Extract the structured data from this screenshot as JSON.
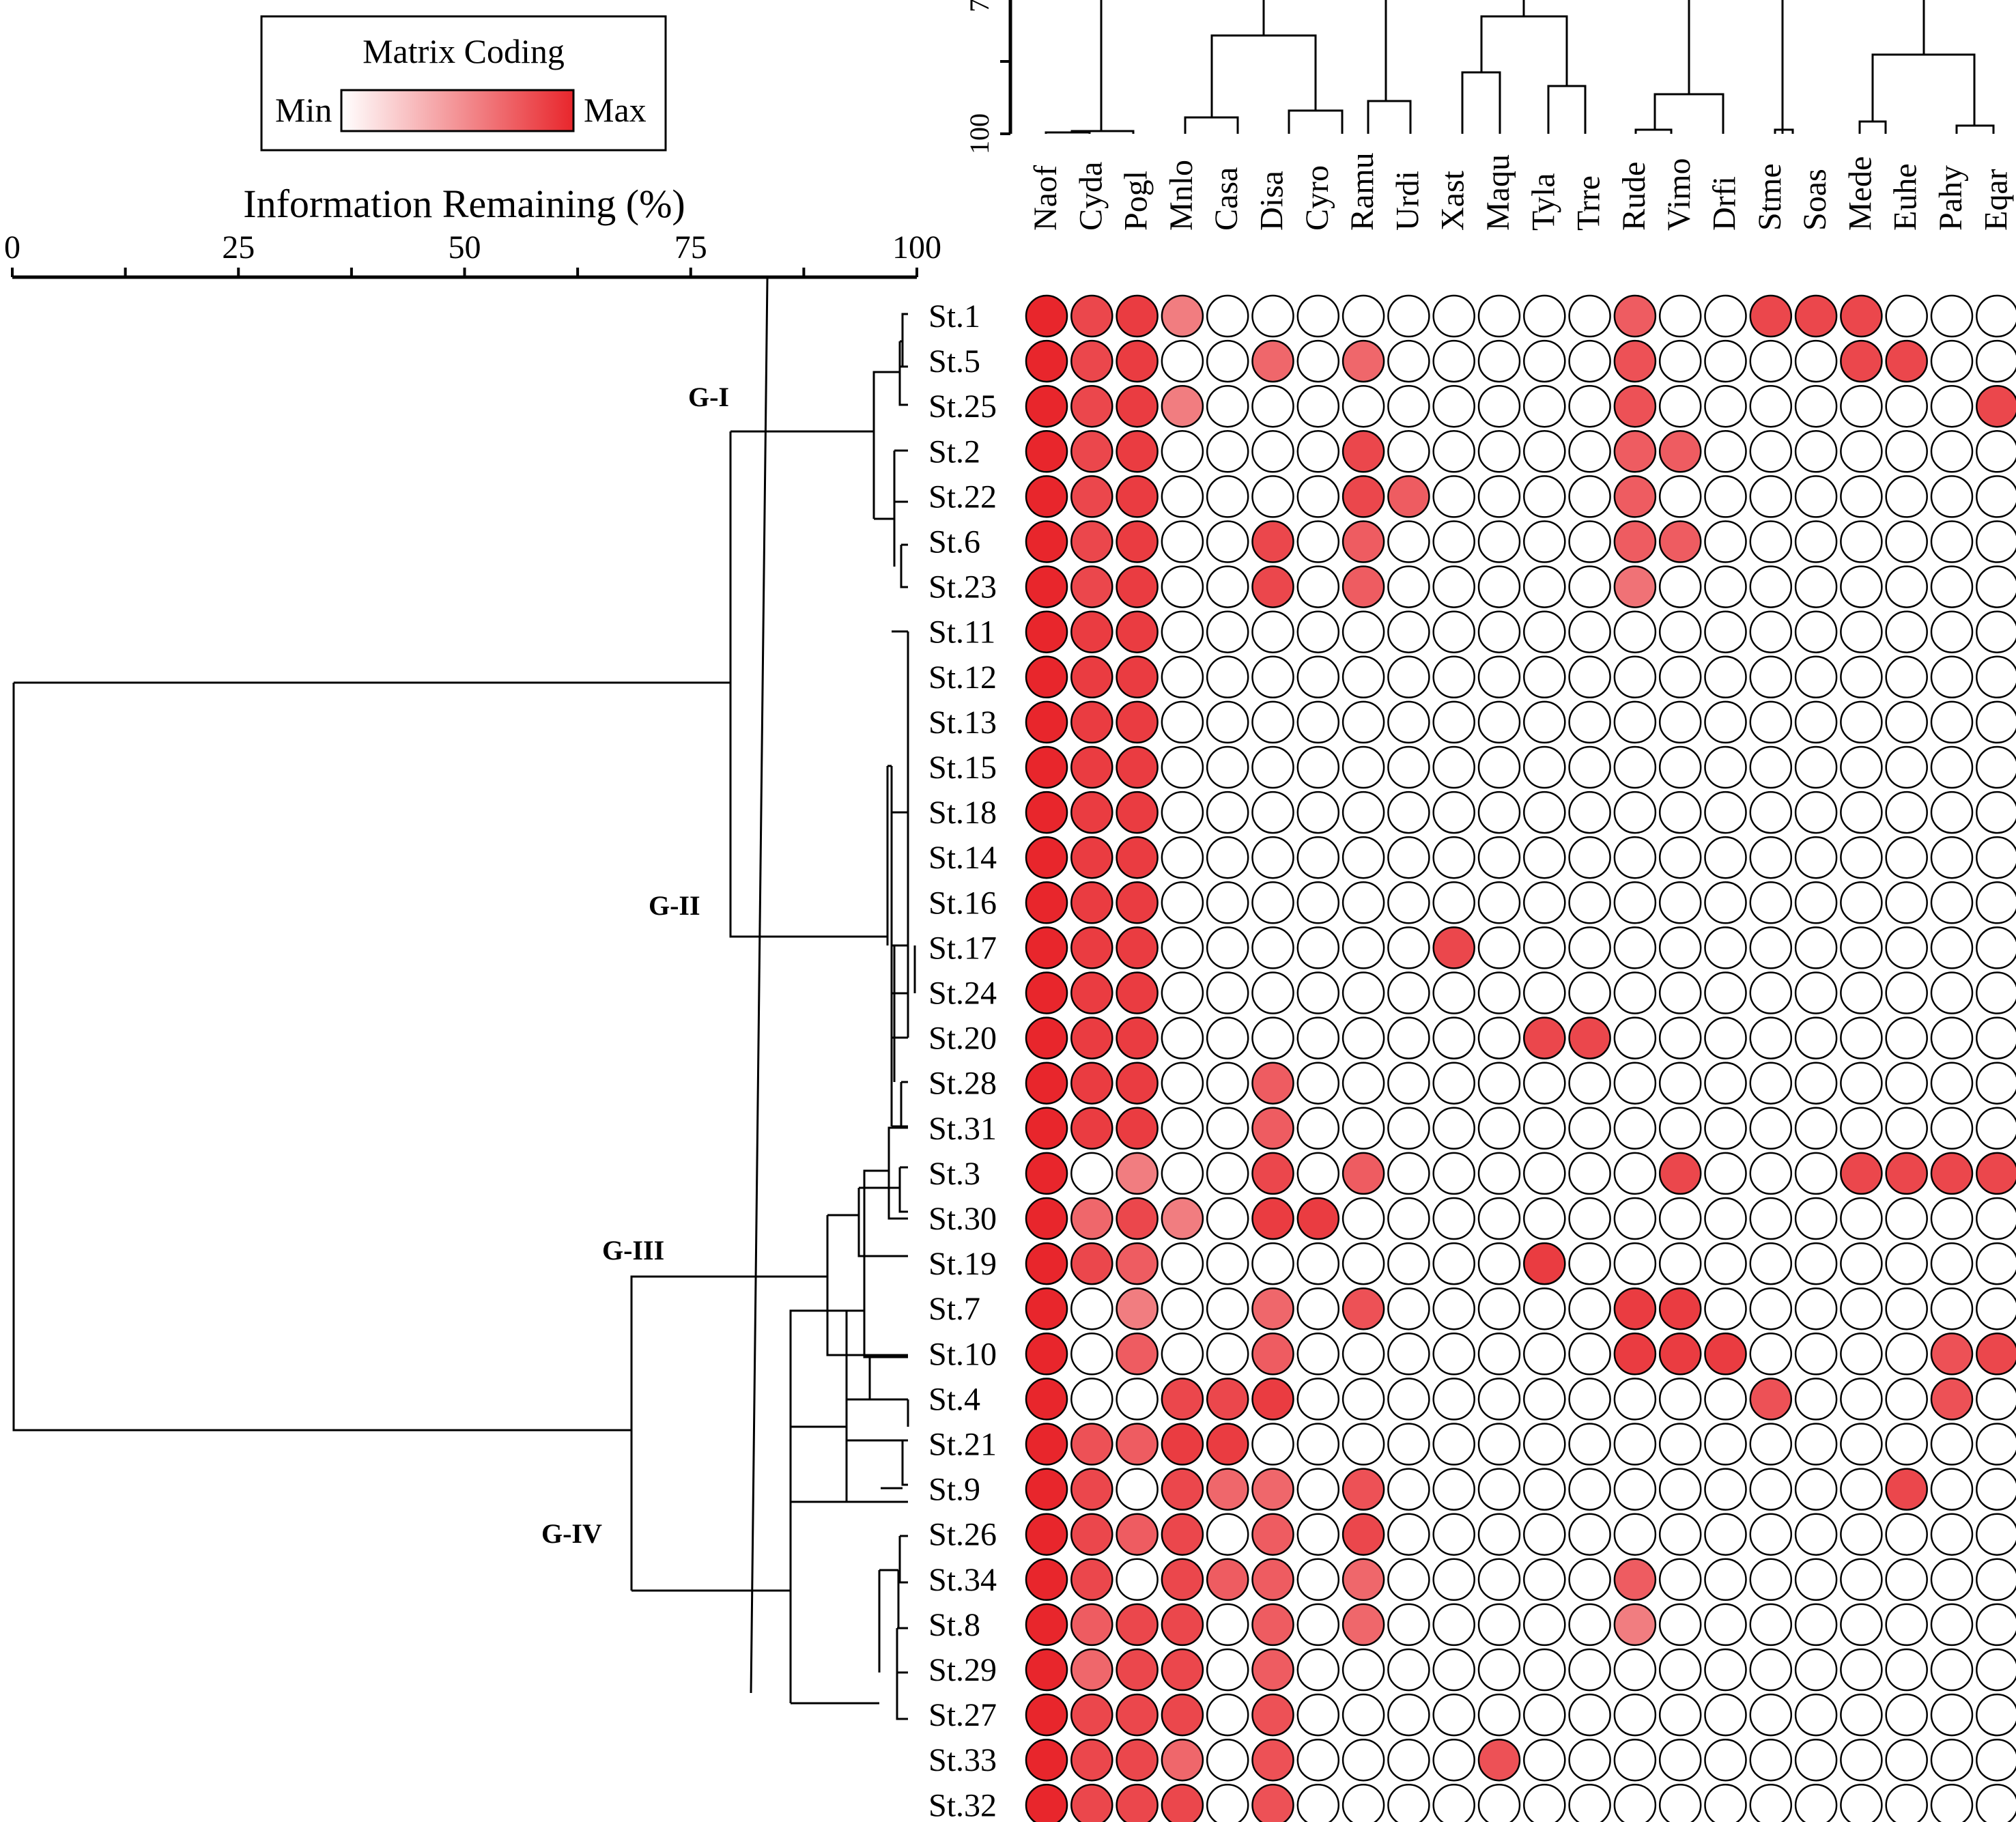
{
  "legend": {
    "title": "Matrix Coding",
    "min_label": "Min",
    "max_label": "Max",
    "min_color": "#ffffff",
    "max_color": "#e8262c"
  },
  "chart_data": {
    "type": "heatmap",
    "xlabel": "Information Remaining (%)",
    "xlim": [
      0,
      100
    ],
    "x_ticks": [
      "0",
      "25",
      "50",
      "75",
      "100"
    ],
    "top_dendrogram_ticks": [
      "100",
      "7"
    ],
    "cutoff_line": true,
    "groups": [
      "G-I",
      "G-II",
      "G-III",
      "G-IV"
    ],
    "columns": [
      "Naof",
      "Cyda",
      "Pogl",
      "Mnlo",
      "Casa",
      "Disa",
      "Cyro",
      "Ramu",
      "Urdi",
      "Xast",
      "Maqu",
      "Tyla",
      "Trre",
      "Rude",
      "Vimo",
      "Drfi",
      "Stme",
      "Soas",
      "Mede",
      "Euhe",
      "Pahy",
      "Eqar"
    ],
    "rows": [
      "St.1",
      "St.5",
      "St.25",
      "St.2",
      "St.22",
      "St.6",
      "St.23",
      "St.11",
      "St.12",
      "St.13",
      "St.15",
      "St.18",
      "St.14",
      "St.16",
      "St.17",
      "St.24",
      "St.20",
      "St.28",
      "St.31",
      "St.3",
      "St.30",
      "St.19",
      "St.7",
      "St.10",
      "St.4",
      "St.21",
      "St.9",
      "St.26",
      "St.34",
      "St.8",
      "St.29",
      "St.27",
      "St.33",
      "St.32"
    ],
    "values": [
      [
        1.0,
        0.85,
        0.9,
        0.6,
        0,
        0,
        0,
        0,
        0,
        0,
        0,
        0,
        0,
        0.75,
        0,
        0,
        0.85,
        0.85,
        0.85,
        0,
        0,
        0
      ],
      [
        1.0,
        0.85,
        0.9,
        0,
        0,
        0.7,
        0,
        0.7,
        0,
        0,
        0,
        0,
        0,
        0.8,
        0,
        0,
        0,
        0,
        0.85,
        0.85,
        0,
        0
      ],
      [
        1.0,
        0.85,
        0.9,
        0.6,
        0,
        0,
        0,
        0,
        0,
        0,
        0,
        0,
        0,
        0.8,
        0,
        0,
        0,
        0,
        0,
        0,
        0,
        0.85
      ],
      [
        1.0,
        0.85,
        0.9,
        0,
        0,
        0,
        0,
        0.85,
        0,
        0,
        0,
        0,
        0,
        0.75,
        0.75,
        0,
        0,
        0,
        0,
        0,
        0,
        0
      ],
      [
        1.0,
        0.85,
        0.9,
        0,
        0,
        0,
        0,
        0.85,
        0.75,
        0,
        0,
        0,
        0,
        0.75,
        0,
        0,
        0,
        0,
        0,
        0,
        0,
        0
      ],
      [
        1.0,
        0.85,
        0.9,
        0,
        0,
        0.85,
        0,
        0.75,
        0,
        0,
        0,
        0,
        0,
        0.75,
        0.75,
        0,
        0,
        0,
        0,
        0,
        0,
        0
      ],
      [
        1.0,
        0.85,
        0.9,
        0,
        0,
        0.85,
        0,
        0.75,
        0,
        0,
        0,
        0,
        0,
        0.65,
        0,
        0,
        0,
        0,
        0,
        0,
        0,
        0
      ],
      [
        1.0,
        0.9,
        0.9,
        0,
        0,
        0,
        0,
        0,
        0,
        0,
        0,
        0,
        0,
        0,
        0,
        0,
        0,
        0,
        0,
        0,
        0,
        0
      ],
      [
        1.0,
        0.9,
        0.9,
        0,
        0,
        0,
        0,
        0,
        0,
        0,
        0,
        0,
        0,
        0,
        0,
        0,
        0,
        0,
        0,
        0,
        0,
        0
      ],
      [
        1.0,
        0.9,
        0.9,
        0,
        0,
        0,
        0,
        0,
        0,
        0,
        0,
        0,
        0,
        0,
        0,
        0,
        0,
        0,
        0,
        0,
        0,
        0
      ],
      [
        1.0,
        0.9,
        0.9,
        0,
        0,
        0,
        0,
        0,
        0,
        0,
        0,
        0,
        0,
        0,
        0,
        0,
        0,
        0,
        0,
        0,
        0,
        0
      ],
      [
        1.0,
        0.9,
        0.9,
        0,
        0,
        0,
        0,
        0,
        0,
        0,
        0,
        0,
        0,
        0,
        0,
        0,
        0,
        0,
        0,
        0,
        0,
        0
      ],
      [
        1.0,
        0.9,
        0.9,
        0,
        0,
        0,
        0,
        0,
        0,
        0,
        0,
        0,
        0,
        0,
        0,
        0,
        0,
        0,
        0,
        0,
        0,
        0
      ],
      [
        1.0,
        0.9,
        0.9,
        0,
        0,
        0,
        0,
        0,
        0,
        0,
        0,
        0,
        0,
        0,
        0,
        0,
        0,
        0,
        0,
        0,
        0,
        0
      ],
      [
        1.0,
        0.9,
        0.9,
        0,
        0,
        0,
        0,
        0,
        0,
        0.85,
        0,
        0,
        0,
        0,
        0,
        0,
        0,
        0,
        0,
        0,
        0,
        0
      ],
      [
        1.0,
        0.9,
        0.9,
        0,
        0,
        0,
        0,
        0,
        0,
        0,
        0,
        0,
        0,
        0,
        0,
        0,
        0,
        0,
        0,
        0,
        0,
        0
      ],
      [
        1.0,
        0.9,
        0.9,
        0,
        0,
        0,
        0,
        0,
        0,
        0,
        0,
        0.85,
        0.85,
        0,
        0,
        0,
        0,
        0,
        0,
        0,
        0,
        0
      ],
      [
        1.0,
        0.9,
        0.9,
        0,
        0,
        0.75,
        0,
        0,
        0,
        0,
        0,
        0,
        0,
        0,
        0,
        0,
        0,
        0,
        0,
        0,
        0,
        0
      ],
      [
        1.0,
        0.9,
        0.9,
        0,
        0,
        0.75,
        0,
        0,
        0,
        0,
        0,
        0,
        0,
        0,
        0,
        0,
        0,
        0,
        0,
        0,
        0,
        0
      ],
      [
        1.0,
        0,
        0.6,
        0,
        0,
        0.85,
        0,
        0.75,
        0,
        0,
        0,
        0,
        0,
        0,
        0.85,
        0,
        0,
        0,
        0.85,
        0.85,
        0.85,
        0.85
      ],
      [
        1.0,
        0.7,
        0.85,
        0.6,
        0,
        0.9,
        0.9,
        0,
        0,
        0,
        0,
        0,
        0,
        0,
        0,
        0,
        0,
        0,
        0,
        0,
        0,
        0
      ],
      [
        1.0,
        0.85,
        0.75,
        0,
        0,
        0,
        0,
        0,
        0,
        0,
        0,
        0.9,
        0,
        0,
        0,
        0,
        0,
        0,
        0,
        0,
        0,
        0
      ],
      [
        1.0,
        0,
        0.6,
        0,
        0,
        0.7,
        0,
        0.8,
        0,
        0,
        0,
        0,
        0,
        0.9,
        0.9,
        0,
        0,
        0,
        0,
        0,
        0,
        0
      ],
      [
        1.0,
        0,
        0.75,
        0,
        0,
        0.75,
        0,
        0,
        0,
        0,
        0,
        0,
        0,
        0.9,
        0.9,
        0.9,
        0,
        0,
        0,
        0,
        0.8,
        0.85
      ],
      [
        1.0,
        0,
        0,
        0.85,
        0.85,
        0.9,
        0,
        0,
        0,
        0,
        0,
        0,
        0,
        0,
        0,
        0,
        0.8,
        0,
        0,
        0,
        0.8,
        0
      ],
      [
        1.0,
        0.8,
        0.75,
        0.9,
        0.9,
        0,
        0,
        0,
        0,
        0,
        0,
        0,
        0,
        0,
        0,
        0,
        0,
        0,
        0,
        0,
        0,
        0
      ],
      [
        1.0,
        0.85,
        0,
        0.85,
        0.7,
        0.7,
        0,
        0.8,
        0,
        0,
        0,
        0,
        0,
        0,
        0,
        0,
        0,
        0,
        0,
        0.85,
        0,
        0
      ],
      [
        1.0,
        0.85,
        0.75,
        0.85,
        0,
        0.75,
        0,
        0.85,
        0,
        0,
        0,
        0,
        0,
        0,
        0,
        0,
        0,
        0,
        0,
        0,
        0,
        0
      ],
      [
        1.0,
        0.85,
        0,
        0.85,
        0.75,
        0.75,
        0,
        0.7,
        0,
        0,
        0,
        0,
        0,
        0.75,
        0,
        0,
        0,
        0,
        0,
        0,
        0,
        0
      ],
      [
        1.0,
        0.75,
        0.85,
        0.85,
        0,
        0.75,
        0,
        0.7,
        0,
        0,
        0,
        0,
        0,
        0.6,
        0,
        0,
        0,
        0,
        0,
        0,
        0,
        0
      ],
      [
        1.0,
        0.7,
        0.85,
        0.85,
        0,
        0.75,
        0,
        0,
        0,
        0,
        0,
        0,
        0,
        0,
        0,
        0,
        0,
        0,
        0,
        0,
        0,
        0
      ],
      [
        1.0,
        0.85,
        0.85,
        0.85,
        0,
        0.8,
        0,
        0,
        0,
        0,
        0,
        0,
        0,
        0,
        0,
        0,
        0,
        0,
        0,
        0,
        0,
        0
      ],
      [
        1.0,
        0.85,
        0.85,
        0.7,
        0,
        0.8,
        0,
        0,
        0,
        0,
        0.8,
        0,
        0,
        0,
        0,
        0,
        0,
        0,
        0,
        0,
        0,
        0
      ],
      [
        1.0,
        0.85,
        0.85,
        0.85,
        0,
        0.8,
        0,
        0,
        0,
        0,
        0,
        0,
        0,
        0,
        0,
        0,
        0,
        0,
        0,
        0,
        0,
        0
      ]
    ]
  }
}
